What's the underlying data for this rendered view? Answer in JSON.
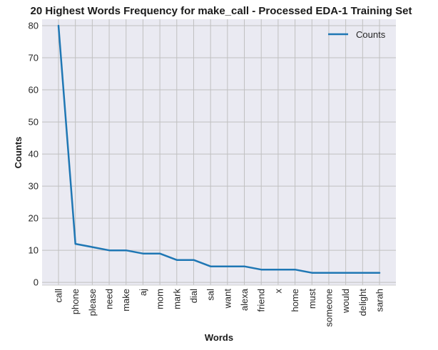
{
  "chart_data": {
    "type": "line",
    "title": "20 Highest Words Frequency for make_call - Processed EDA-1 Training Set",
    "xlabel": "Words",
    "ylabel": "Counts",
    "categories": [
      "call",
      "phone",
      "please",
      "need",
      "make",
      "aj",
      "mom",
      "mark",
      "dial",
      "sal",
      "want",
      "alexa",
      "friend",
      "x",
      "home",
      "must",
      "someone",
      "would",
      "delight",
      "sarah"
    ],
    "series": [
      {
        "name": "Counts",
        "values": [
          80,
          12,
          11,
          10,
          10,
          9,
          9,
          7,
          7,
          5,
          5,
          5,
          4,
          4,
          4,
          3,
          3,
          3,
          3,
          3
        ]
      }
    ],
    "yticks": [
      0,
      10,
      20,
      30,
      40,
      50,
      60,
      70,
      80
    ],
    "ylim": [
      -0.85,
      82
    ],
    "grid": true,
    "legend": "top-right",
    "colors": {
      "line": "#1f77b4",
      "plot_bg": "#eaeaf2",
      "grid": "#c0c0c0"
    }
  }
}
